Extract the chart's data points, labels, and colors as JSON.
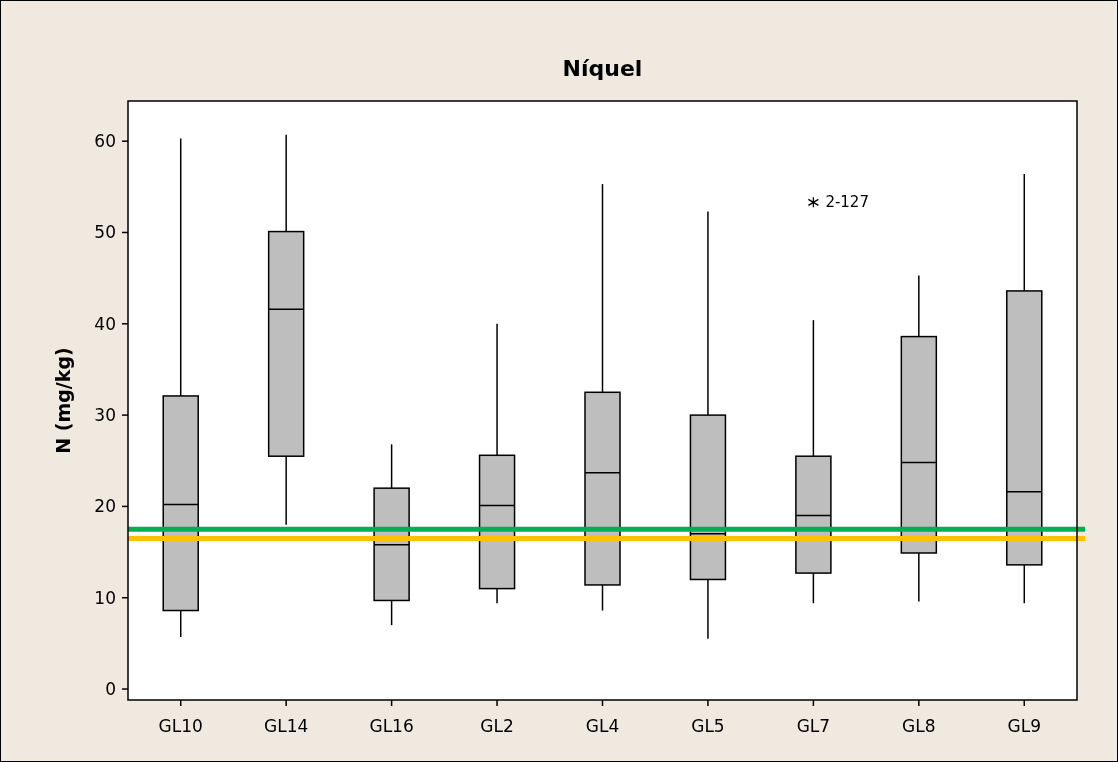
{
  "chart_data": {
    "type": "box",
    "title": "Níquel",
    "ylabel": "N (mg/kg)",
    "categories": [
      "GL10",
      "GL14",
      "GL16",
      "GL2",
      "GL4",
      "GL5",
      "GL7",
      "GL8",
      "GL9"
    ],
    "color": "#bebebe",
    "boxes": [
      {
        "low": 5.7,
        "q1": 8.6,
        "median": 20.2,
        "q3": 32.1,
        "high": 60.3
      },
      {
        "low": 18.0,
        "q1": 25.5,
        "median": 41.6,
        "q3": 50.1,
        "high": 60.7
      },
      {
        "low": 7.0,
        "q1": 9.7,
        "median": 15.8,
        "q3": 22.0,
        "high": 26.8
      },
      {
        "low": 9.4,
        "q1": 11.0,
        "median": 20.1,
        "q3": 25.6,
        "high": 40.0
      },
      {
        "low": 8.6,
        "q1": 11.4,
        "median": 23.7,
        "q3": 32.5,
        "high": 55.3
      },
      {
        "low": 5.5,
        "q1": 12.0,
        "median": 17.0,
        "q3": 30.0,
        "high": 52.3
      },
      {
        "low": 9.4,
        "q1": 12.7,
        "median": 19.0,
        "q3": 25.5,
        "high": 40.4,
        "outliers": [
          53.3
        ]
      },
      {
        "low": 9.6,
        "q1": 14.9,
        "median": 24.8,
        "q3": 38.6,
        "high": 45.3
      },
      {
        "low": 9.4,
        "q1": 13.6,
        "median": 21.6,
        "q3": 43.6,
        "high": 56.4
      }
    ],
    "annotations": [
      "2-127"
    ],
    "ref_lines": [
      {
        "axis": "y",
        "value": 17.5,
        "color": "#00b050"
      },
      {
        "axis": "y",
        "value": 16.5,
        "color": "#ffc000"
      }
    ],
    "ylim": [
      -1.2,
      64.4
    ],
    "yticks": [
      0,
      10,
      20,
      30,
      40,
      50,
      60
    ],
    "grid": false
  }
}
